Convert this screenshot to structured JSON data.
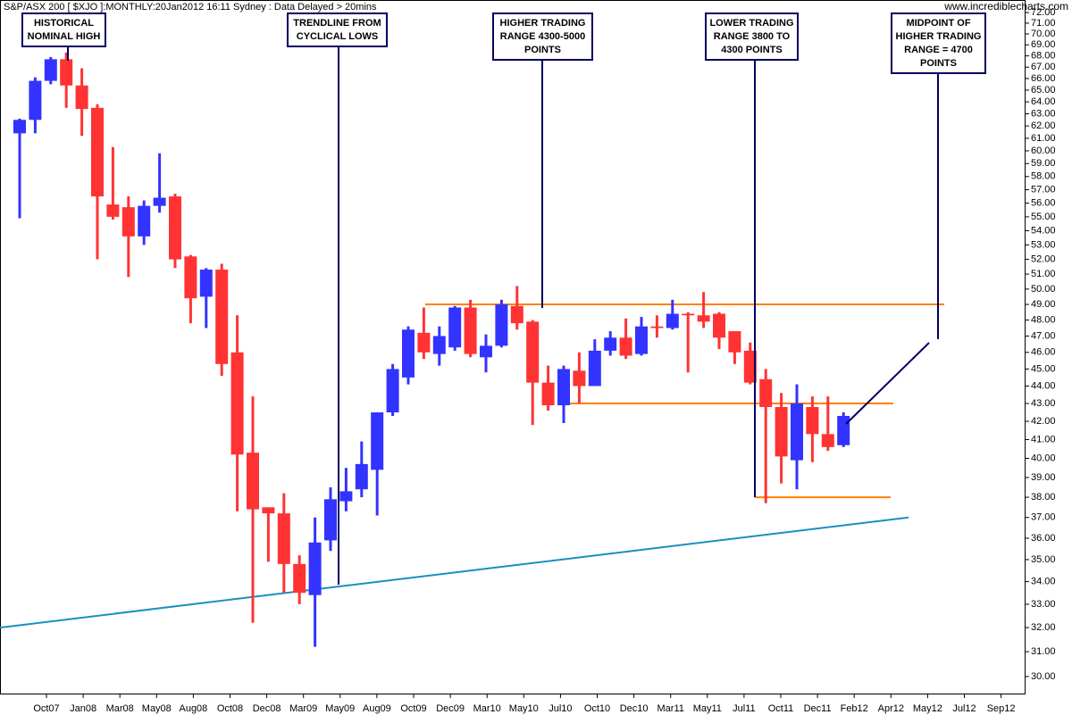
{
  "chart_data": {
    "type": "candlestick",
    "title": "S&P/ASX 200 [ $XJO ]:MONTHLY:20Jan2012 16:11 Sydney : Data Delayed > 20mins",
    "watermark": "www.incrediblecharts.com",
    "log_scale": true,
    "up_color": "#3333ff",
    "down_color": "#ff3333",
    "ylim": [
      29.3,
      73.2
    ],
    "yticks": [
      {
        "value": 30,
        "label": "30.00"
      },
      {
        "value": 31,
        "label": "31.00"
      },
      {
        "value": 32,
        "label": "32.00"
      },
      {
        "value": 33,
        "label": "33.00"
      },
      {
        "value": 34,
        "label": "34.00"
      },
      {
        "value": 35,
        "label": "35.00"
      },
      {
        "value": 36,
        "label": "36.00"
      },
      {
        "value": 37,
        "label": "37.00"
      },
      {
        "value": 38,
        "label": "38.00"
      },
      {
        "value": 39,
        "label": "39.00"
      },
      {
        "value": 40,
        "label": "40.00"
      },
      {
        "value": 41,
        "label": "41.00"
      },
      {
        "value": 42,
        "label": "42.00"
      },
      {
        "value": 43,
        "label": "43.00"
      },
      {
        "value": 44,
        "label": "44.00"
      },
      {
        "value": 45,
        "label": "45.00"
      },
      {
        "value": 46,
        "label": "46.00"
      },
      {
        "value": 47,
        "label": "47.00"
      },
      {
        "value": 48,
        "label": "48.00"
      },
      {
        "value": 49,
        "label": "49.00"
      },
      {
        "value": 50,
        "label": "50.00"
      },
      {
        "value": 51,
        "label": "51.00"
      },
      {
        "value": 52,
        "label": "52.00"
      },
      {
        "value": 53,
        "label": "53.00"
      },
      {
        "value": 54,
        "label": "54.00"
      },
      {
        "value": 55,
        "label": "55.00"
      },
      {
        "value": 56,
        "label": "56.00"
      },
      {
        "value": 57,
        "label": "57.00"
      },
      {
        "value": 58,
        "label": "58.00"
      },
      {
        "value": 59,
        "label": "59.00"
      },
      {
        "value": 60,
        "label": "60.00"
      },
      {
        "value": 61,
        "label": "61.00"
      },
      {
        "value": 62,
        "label": "62.00"
      },
      {
        "value": 63,
        "label": "63.00"
      },
      {
        "value": 64,
        "label": "64.00"
      },
      {
        "value": 65,
        "label": "65.00"
      },
      {
        "value": 66,
        "label": "66.00"
      },
      {
        "value": 67,
        "label": "67.00"
      },
      {
        "value": 68,
        "label": "68.00"
      },
      {
        "value": 69,
        "label": "69.00"
      },
      {
        "value": 70,
        "label": "70.00"
      },
      {
        "value": 71,
        "label": "71.00"
      },
      {
        "value": 72,
        "label": "72.00"
      }
    ],
    "xtick_labels": [
      "Oct07",
      "Jan08",
      "Mar08",
      "May08",
      "Aug08",
      "Oct08",
      "Dec08",
      "Mar09",
      "May09",
      "Aug09",
      "Oct09",
      "Dec09",
      "Mar10",
      "May10",
      "Jul10",
      "Oct10",
      "Dec10",
      "Mar11",
      "May11",
      "Jul11",
      "Oct11",
      "Dec11",
      "Feb12",
      "Apr12",
      "May12",
      "Jul12",
      "Sep12"
    ],
    "candles": [
      {
        "open": 61.4,
        "high": 62.6,
        "low": 54.9,
        "close": 62.5
      },
      {
        "open": 62.5,
        "high": 66.1,
        "low": 61.4,
        "close": 65.8
      },
      {
        "open": 65.8,
        "high": 67.9,
        "low": 65.5,
        "close": 67.7
      },
      {
        "open": 67.7,
        "high": 68.3,
        "low": 63.5,
        "close": 65.4
      },
      {
        "open": 65.4,
        "high": 66.9,
        "low": 61.2,
        "close": 63.4
      },
      {
        "open": 63.5,
        "high": 63.8,
        "low": 52.0,
        "close": 56.5
      },
      {
        "open": 55.9,
        "high": 60.3,
        "low": 54.8,
        "close": 55.0
      },
      {
        "open": 55.7,
        "high": 56.5,
        "low": 50.8,
        "close": 53.6
      },
      {
        "open": 53.6,
        "high": 56.2,
        "low": 53.0,
        "close": 55.8
      },
      {
        "open": 55.8,
        "high": 59.8,
        "low": 55.3,
        "close": 56.4
      },
      {
        "open": 56.5,
        "high": 56.7,
        "low": 51.4,
        "close": 52.0
      },
      {
        "open": 52.2,
        "high": 52.3,
        "low": 47.8,
        "close": 49.4
      },
      {
        "open": 49.5,
        "high": 51.4,
        "low": 47.5,
        "close": 51.3
      },
      {
        "open": 51.3,
        "high": 51.7,
        "low": 44.6,
        "close": 45.3
      },
      {
        "open": 46.0,
        "high": 48.3,
        "low": 37.3,
        "close": 40.2
      },
      {
        "open": 40.3,
        "high": 43.4,
        "low": 32.2,
        "close": 37.4
      },
      {
        "open": 37.5,
        "high": 37.5,
        "low": 34.9,
        "close": 37.2
      },
      {
        "open": 37.2,
        "high": 38.2,
        "low": 33.5,
        "close": 34.8
      },
      {
        "open": 34.8,
        "high": 35.2,
        "low": 33.0,
        "close": 33.5
      },
      {
        "open": 33.4,
        "high": 37.0,
        "low": 31.2,
        "close": 35.8
      },
      {
        "open": 35.9,
        "high": 38.5,
        "low": 35.4,
        "close": 37.9
      },
      {
        "open": 37.8,
        "high": 39.5,
        "low": 37.3,
        "close": 38.3
      },
      {
        "open": 38.4,
        "high": 40.9,
        "low": 38.0,
        "close": 39.7
      },
      {
        "open": 39.4,
        "high": 42.5,
        "low": 37.1,
        "close": 42.5
      },
      {
        "open": 42.5,
        "high": 45.3,
        "low": 42.3,
        "close": 45.0
      },
      {
        "open": 44.5,
        "high": 47.6,
        "low": 44.1,
        "close": 47.4
      },
      {
        "open": 47.2,
        "high": 48.8,
        "low": 45.6,
        "close": 46.0
      },
      {
        "open": 45.9,
        "high": 47.6,
        "low": 45.2,
        "close": 47.0
      },
      {
        "open": 46.3,
        "high": 48.9,
        "low": 46.1,
        "close": 48.8
      },
      {
        "open": 48.8,
        "high": 49.3,
        "low": 45.7,
        "close": 45.9
      },
      {
        "open": 45.7,
        "high": 47.1,
        "low": 44.8,
        "close": 46.4
      },
      {
        "open": 46.4,
        "high": 49.3,
        "low": 46.3,
        "close": 49.0
      },
      {
        "open": 48.9,
        "high": 50.2,
        "low": 47.4,
        "close": 47.8
      },
      {
        "open": 47.9,
        "high": 48.0,
        "low": 41.8,
        "close": 44.2
      },
      {
        "open": 44.2,
        "high": 45.2,
        "low": 42.6,
        "close": 42.9
      },
      {
        "open": 42.9,
        "high": 45.2,
        "low": 41.9,
        "close": 45.0
      },
      {
        "open": 44.9,
        "high": 46.0,
        "low": 43.0,
        "close": 44.0
      },
      {
        "open": 44.0,
        "high": 46.8,
        "low": 44.0,
        "close": 46.1
      },
      {
        "open": 46.1,
        "high": 47.3,
        "low": 45.8,
        "close": 46.9
      },
      {
        "open": 46.9,
        "high": 48.1,
        "low": 45.6,
        "close": 45.8
      },
      {
        "open": 45.9,
        "high": 48.2,
        "low": 45.8,
        "close": 47.6
      },
      {
        "open": 47.6,
        "high": 48.3,
        "low": 46.9,
        "close": 47.5
      },
      {
        "open": 47.5,
        "high": 49.3,
        "low": 47.4,
        "close": 48.4
      },
      {
        "open": 48.4,
        "high": 48.5,
        "low": 44.8,
        "close": 48.3
      },
      {
        "open": 48.3,
        "high": 49.8,
        "low": 47.5,
        "close": 47.9
      },
      {
        "open": 48.4,
        "high": 48.5,
        "low": 46.2,
        "close": 46.9
      },
      {
        "open": 47.3,
        "high": 47.3,
        "low": 45.3,
        "close": 46.0
      },
      {
        "open": 46.1,
        "high": 46.6,
        "low": 44.1,
        "close": 44.2
      },
      {
        "open": 44.4,
        "high": 45.0,
        "low": 37.7,
        "close": 42.8
      },
      {
        "open": 42.8,
        "high": 43.6,
        "low": 38.7,
        "close": 40.1
      },
      {
        "open": 39.9,
        "high": 44.1,
        "low": 38.4,
        "close": 43.0
      },
      {
        "open": 42.8,
        "high": 43.4,
        "low": 39.8,
        "close": 41.3
      },
      {
        "open": 41.3,
        "high": 43.4,
        "low": 40.4,
        "close": 40.6
      },
      {
        "open": 40.7,
        "high": 42.5,
        "low": 40.6,
        "close": 42.3
      }
    ],
    "levels": [
      {
        "value": 49.0,
        "color": "#ff8000"
      },
      {
        "value": 43.0,
        "color": "#ff8000"
      },
      {
        "value": 38.0,
        "color": "#ff8000"
      }
    ],
    "trendline": {
      "values": [
        32.0,
        37.0
      ],
      "color": "#1a8fbf"
    },
    "annotations": [
      {
        "lines": [
          "HISTORICAL",
          "NOMINAL HIGH"
        ]
      },
      {
        "lines": [
          "TRENDLINE FROM",
          "CYCLICAL LOWS"
        ]
      },
      {
        "lines": [
          "HIGHER TRADING",
          "RANGE 4300-5000",
          "POINTS"
        ]
      },
      {
        "lines": [
          "LOWER TRADING",
          "RANGE 3800 TO",
          "4300 POINTS"
        ]
      },
      {
        "lines": [
          "MIDPOINT OF",
          "HIGHER TRADING",
          "RANGE = 4700",
          "POINTS"
        ]
      }
    ]
  }
}
